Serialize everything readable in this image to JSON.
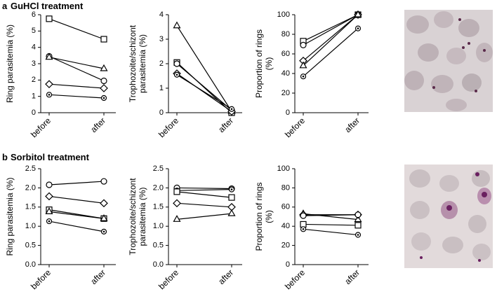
{
  "panels": [
    {
      "label": "a",
      "title": "GuHCl treatment"
    },
    {
      "label": "b",
      "title": "Sorbitol treatment"
    }
  ],
  "chart_data": [
    {
      "type": "line",
      "ylabel": [
        "Ring parasitemia (%)"
      ],
      "categories": [
        "before",
        "after"
      ],
      "ylim": [
        0,
        6
      ],
      "yticks": [
        0,
        1,
        2,
        3,
        4,
        5,
        6
      ],
      "series": [
        {
          "marker": "square",
          "color": "#000000",
          "values": [
            5.75,
            4.5
          ]
        },
        {
          "marker": "circle",
          "color": "#000000",
          "values": [
            3.45,
            1.95
          ]
        },
        {
          "marker": "triangle",
          "color": "#000000",
          "values": [
            3.4,
            2.7
          ]
        },
        {
          "marker": "diamond",
          "color": "#000000",
          "values": [
            1.75,
            1.5
          ]
        },
        {
          "marker": "circledot",
          "color": "#000000",
          "values": [
            1.1,
            0.9
          ]
        }
      ]
    },
    {
      "type": "line",
      "ylabel": [
        "Trophozoite/schizont",
        "parasitemia (%)"
      ],
      "categories": [
        "before",
        "after"
      ],
      "ylim": [
        0,
        4
      ],
      "yticks": [
        0,
        1,
        2,
        3,
        4
      ],
      "series": [
        {
          "marker": "triangle",
          "color": "#000000",
          "values": [
            3.55,
            0.05
          ]
        },
        {
          "marker": "square",
          "color": "#000000",
          "values": [
            2.05,
            0
          ]
        },
        {
          "marker": "circle",
          "color": "#000000",
          "values": [
            2.0,
            0.1
          ]
        },
        {
          "marker": "diamond",
          "color": "#000000",
          "values": [
            1.6,
            0.05
          ]
        },
        {
          "marker": "circledot",
          "color": "#000000",
          "values": [
            1.55,
            0.15
          ]
        }
      ]
    },
    {
      "type": "line",
      "ylabel": [
        "Proportion of rings",
        "(%)"
      ],
      "categories": [
        "before",
        "after"
      ],
      "ylim": [
        0,
        100
      ],
      "yticks": [
        0,
        20,
        40,
        60,
        80,
        100
      ],
      "series": [
        {
          "marker": "square",
          "color": "#000000",
          "values": [
            73,
            100
          ]
        },
        {
          "marker": "circle",
          "color": "#000000",
          "values": [
            69,
            100
          ]
        },
        {
          "marker": "diamond",
          "color": "#000000",
          "values": [
            53,
            100
          ]
        },
        {
          "marker": "triangle",
          "color": "#000000",
          "values": [
            48,
            100
          ]
        },
        {
          "marker": "circledot",
          "color": "#000000",
          "values": [
            37,
            86
          ]
        }
      ]
    },
    {
      "type": "line",
      "ylabel": [
        "Ring parasitemia (%)"
      ],
      "categories": [
        "before",
        "after"
      ],
      "ylim": [
        0,
        2.5
      ],
      "yticks": [
        {
          "value": 0,
          "label": "0.0"
        },
        {
          "value": 0.5,
          "label": "0.5"
        },
        {
          "value": 1,
          "label": "1.0"
        },
        {
          "value": 1.5,
          "label": "1.5"
        },
        {
          "value": 2,
          "label": "2.0"
        },
        {
          "value": 2.5,
          "label": "2.5"
        }
      ],
      "series": [
        {
          "marker": "circle",
          "color": "#000000",
          "values": [
            2.08,
            2.17
          ]
        },
        {
          "marker": "diamond",
          "color": "#000000",
          "values": [
            1.78,
            1.6
          ]
        },
        {
          "marker": "square",
          "color": "#000000",
          "values": [
            1.43,
            1.2
          ]
        },
        {
          "marker": "triangle",
          "color": "#000000",
          "values": [
            1.38,
            1.2
          ]
        },
        {
          "marker": "circledot",
          "color": "#000000",
          "values": [
            1.13,
            0.86
          ]
        }
      ]
    },
    {
      "type": "line",
      "ylabel": [
        "Trophozoite/schizont",
        "parasitemia (%)"
      ],
      "categories": [
        "before",
        "after"
      ],
      "ylim": [
        0,
        2.5
      ],
      "yticks": [
        {
          "value": 0,
          "label": "0.0"
        },
        {
          "value": 0.5,
          "label": "0.5"
        },
        {
          "value": 1,
          "label": "1.0"
        },
        {
          "value": 1.5,
          "label": "1.5"
        },
        {
          "value": 2,
          "label": "2.0"
        },
        {
          "value": 2.5,
          "label": "2.5"
        }
      ],
      "series": [
        {
          "marker": "circle",
          "color": "#000000",
          "values": [
            2.0,
            1.98
          ]
        },
        {
          "marker": "circledot",
          "color": "#000000",
          "values": [
            1.93,
            1.96
          ]
        },
        {
          "marker": "square",
          "color": "#000000",
          "values": [
            1.9,
            1.75
          ]
        },
        {
          "marker": "diamond",
          "color": "#000000",
          "values": [
            1.6,
            1.5
          ]
        },
        {
          "marker": "triangle",
          "color": "#000000",
          "values": [
            1.18,
            1.33
          ]
        }
      ]
    },
    {
      "type": "line",
      "ylabel": [
        "Proportion of rings",
        "(%)"
      ],
      "categories": [
        "before",
        "after"
      ],
      "ylim": [
        0,
        100
      ],
      "yticks": [
        0,
        20,
        40,
        60,
        80,
        100
      ],
      "series": [
        {
          "marker": "triangle",
          "color": "#000000",
          "values": [
            53,
            47
          ]
        },
        {
          "marker": "diamond",
          "color": "#000000",
          "values": [
            52,
            52
          ]
        },
        {
          "marker": "circle",
          "color": "#000000",
          "values": [
            51,
            52
          ]
        },
        {
          "marker": "square",
          "color": "#000000",
          "values": [
            42,
            41
          ]
        },
        {
          "marker": "circledot",
          "color": "#000000",
          "values": [
            37,
            31
          ]
        }
      ]
    }
  ]
}
